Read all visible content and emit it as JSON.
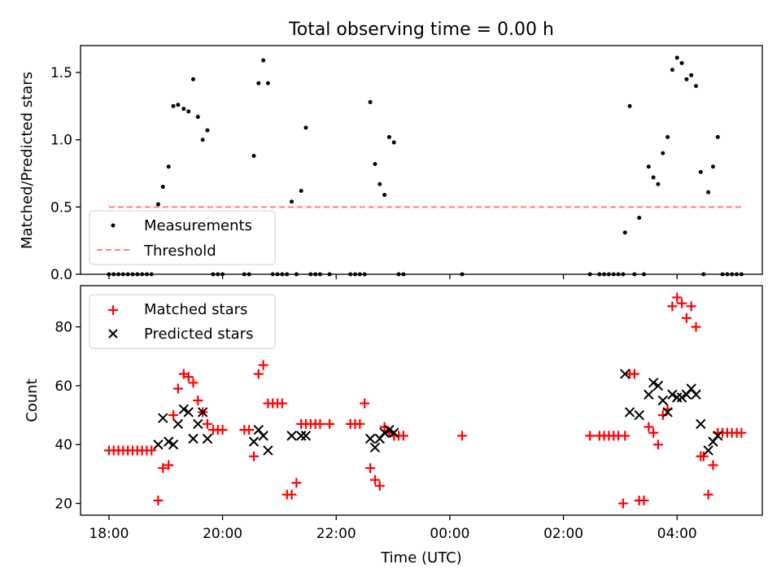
{
  "figure_title": "Total observing time = 0.00 h",
  "chart_data": [
    {
      "type": "scatter",
      "title": "Total observing time = 0.00 h",
      "xlabel": "",
      "ylabel": "Matched/Predicted stars",
      "xlim": [
        "17:30",
        "05:30"
      ],
      "ylim": [
        0,
        1.7
      ],
      "yticks": [
        0.0,
        0.5,
        1.0,
        1.5
      ],
      "ytick_labels": [
        "0.0",
        "0.5",
        "1.0",
        "1.5"
      ],
      "grid": false,
      "legend": "lower left",
      "legend_entries": [
        "Measurements",
        "Threshold"
      ],
      "series": [
        {
          "name": "Measurements",
          "marker": "dot",
          "color": "#000000",
          "points": [
            [
              "18:00",
              0
            ],
            [
              "18:05",
              0
            ],
            [
              "18:10",
              0
            ],
            [
              "18:15",
              0
            ],
            [
              "18:20",
              0
            ],
            [
              "18:25",
              0
            ],
            [
              "18:30",
              0
            ],
            [
              "18:35",
              0
            ],
            [
              "18:40",
              0
            ],
            [
              "18:45",
              0
            ],
            [
              "18:52",
              0.52
            ],
            [
              "18:57",
              0.65
            ],
            [
              "19:03",
              0.8
            ],
            [
              "19:08",
              1.25
            ],
            [
              "19:13",
              1.26
            ],
            [
              "19:19",
              1.23
            ],
            [
              "19:24",
              1.21
            ],
            [
              "19:29",
              1.45
            ],
            [
              "19:34",
              1.17
            ],
            [
              "19:39",
              1.0
            ],
            [
              "19:44",
              1.07
            ],
            [
              "19:50",
              0
            ],
            [
              "19:55",
              0
            ],
            [
              "20:00",
              0
            ],
            [
              "20:23",
              0
            ],
            [
              "20:28",
              0
            ],
            [
              "20:33",
              0.88
            ],
            [
              "20:38",
              1.42
            ],
            [
              "20:43",
              1.59
            ],
            [
              "20:48",
              1.42
            ],
            [
              "20:53",
              0
            ],
            [
              "20:58",
              0
            ],
            [
              "21:03",
              0
            ],
            [
              "21:08",
              0
            ],
            [
              "21:13",
              0.54
            ],
            [
              "21:18",
              0
            ],
            [
              "21:23",
              0.62
            ],
            [
              "21:28",
              1.09
            ],
            [
              "21:33",
              0
            ],
            [
              "21:38",
              0
            ],
            [
              "21:43",
              0
            ],
            [
              "21:53",
              0
            ],
            [
              "22:15",
              0
            ],
            [
              "22:20",
              0
            ],
            [
              "22:25",
              0
            ],
            [
              "22:30",
              0
            ],
            [
              "22:36",
              1.28
            ],
            [
              "22:41",
              0.82
            ],
            [
              "22:46",
              0.67
            ],
            [
              "22:51",
              0.59
            ],
            [
              "22:56",
              1.02
            ],
            [
              "23:01",
              0.98
            ],
            [
              "23:06",
              0
            ],
            [
              "23:11",
              0
            ],
            [
              "00:13",
              0
            ],
            [
              "02:28",
              0
            ],
            [
              "02:38",
              0
            ],
            [
              "02:43",
              0
            ],
            [
              "02:48",
              0
            ],
            [
              "02:53",
              0
            ],
            [
              "02:58",
              0
            ],
            [
              "03:03",
              0
            ],
            [
              "03:05",
              0.31
            ],
            [
              "03:10",
              1.25
            ],
            [
              "03:15",
              0
            ],
            [
              "03:20",
              0.42
            ],
            [
              "03:25",
              0
            ],
            [
              "03:30",
              0.8
            ],
            [
              "03:35",
              0.72
            ],
            [
              "03:40",
              0.67
            ],
            [
              "03:45",
              0.9
            ],
            [
              "03:50",
              1.02
            ],
            [
              "03:55",
              1.52
            ],
            [
              "04:00",
              1.61
            ],
            [
              "04:05",
              1.57
            ],
            [
              "04:10",
              1.45
            ],
            [
              "04:15",
              1.48
            ],
            [
              "04:20",
              1.4
            ],
            [
              "04:25",
              0.76
            ],
            [
              "04:28",
              0
            ],
            [
              "04:33",
              0.61
            ],
            [
              "04:38",
              0.8
            ],
            [
              "04:43",
              1.02
            ],
            [
              "04:48",
              0
            ],
            [
              "04:53",
              0
            ],
            [
              "04:58",
              0
            ],
            [
              "05:03",
              0
            ],
            [
              "05:08",
              0
            ]
          ]
        },
        {
          "name": "Threshold",
          "style": "dashed",
          "color": "#ff7f7f",
          "points": [
            [
              "18:00",
              0.5
            ],
            [
              "05:10",
              0.5
            ]
          ]
        }
      ]
    },
    {
      "type": "scatter",
      "title": "",
      "xlabel": "Time (UTC)",
      "ylabel": "Count",
      "xlim": [
        "17:30",
        "05:30"
      ],
      "ylim": [
        16,
        94
      ],
      "yticks": [
        20,
        40,
        60,
        80
      ],
      "ytick_labels": [
        "20",
        "40",
        "60",
        "80"
      ],
      "xticks": [
        "18:00",
        "20:00",
        "22:00",
        "00:00",
        "02:00",
        "04:00"
      ],
      "grid": false,
      "legend": "upper left",
      "legend_entries": [
        "Matched stars",
        "Predicted stars"
      ],
      "series": [
        {
          "name": "Matched stars",
          "marker": "plus",
          "color": "#ff0000",
          "points": [
            [
              "18:00",
              38
            ],
            [
              "18:05",
              38
            ],
            [
              "18:10",
              38
            ],
            [
              "18:15",
              38
            ],
            [
              "18:20",
              38
            ],
            [
              "18:25",
              38
            ],
            [
              "18:30",
              38
            ],
            [
              "18:35",
              38
            ],
            [
              "18:40",
              38
            ],
            [
              "18:45",
              38
            ],
            [
              "18:52",
              21
            ],
            [
              "18:57",
              32
            ],
            [
              "19:03",
              33
            ],
            [
              "19:08",
              50
            ],
            [
              "19:13",
              59
            ],
            [
              "19:19",
              64
            ],
            [
              "19:24",
              63
            ],
            [
              "19:29",
              61
            ],
            [
              "19:34",
              55
            ],
            [
              "19:39",
              51
            ],
            [
              "19:44",
              47
            ],
            [
              "19:50",
              45
            ],
            [
              "19:55",
              45
            ],
            [
              "20:00",
              45
            ],
            [
              "20:23",
              45
            ],
            [
              "20:28",
              45
            ],
            [
              "20:33",
              36
            ],
            [
              "20:38",
              64
            ],
            [
              "20:43",
              67
            ],
            [
              "20:48",
              54
            ],
            [
              "20:53",
              54
            ],
            [
              "20:58",
              54
            ],
            [
              "21:03",
              54
            ],
            [
              "21:08",
              23
            ],
            [
              "21:13",
              23
            ],
            [
              "21:18",
              27
            ],
            [
              "21:23",
              47
            ],
            [
              "21:28",
              47
            ],
            [
              "21:33",
              47
            ],
            [
              "21:38",
              47
            ],
            [
              "21:43",
              47
            ],
            [
              "21:53",
              47
            ],
            [
              "22:15",
              47
            ],
            [
              "22:20",
              47
            ],
            [
              "22:25",
              47
            ],
            [
              "22:30",
              54
            ],
            [
              "22:36",
              32
            ],
            [
              "22:41",
              28
            ],
            [
              "22:46",
              26
            ],
            [
              "22:51",
              46
            ],
            [
              "22:56",
              44
            ],
            [
              "23:01",
              43
            ],
            [
              "23:06",
              43
            ],
            [
              "23:11",
              43
            ],
            [
              "00:13",
              43
            ],
            [
              "02:28",
              43
            ],
            [
              "02:38",
              43
            ],
            [
              "02:43",
              43
            ],
            [
              "02:48",
              43
            ],
            [
              "02:53",
              43
            ],
            [
              "02:58",
              43
            ],
            [
              "03:03",
              20
            ],
            [
              "03:05",
              43
            ],
            [
              "03:10",
              64
            ],
            [
              "03:15",
              64
            ],
            [
              "03:20",
              21
            ],
            [
              "03:25",
              21
            ],
            [
              "03:30",
              46
            ],
            [
              "03:35",
              44
            ],
            [
              "03:40",
              40
            ],
            [
              "03:45",
              50
            ],
            [
              "03:50",
              52
            ],
            [
              "03:55",
              87
            ],
            [
              "04:00",
              90
            ],
            [
              "04:05",
              88
            ],
            [
              "04:10",
              83
            ],
            [
              "04:15",
              87
            ],
            [
              "04:20",
              80
            ],
            [
              "04:25",
              36
            ],
            [
              "04:28",
              36
            ],
            [
              "04:33",
              23
            ],
            [
              "04:38",
              33
            ],
            [
              "04:43",
              44
            ],
            [
              "04:48",
              44
            ],
            [
              "04:53",
              44
            ],
            [
              "04:58",
              44
            ],
            [
              "05:03",
              44
            ],
            [
              "05:08",
              44
            ]
          ]
        },
        {
          "name": "Predicted stars",
          "marker": "x",
          "color": "#000000",
          "points": [
            [
              "18:52",
              40
            ],
            [
              "18:57",
              49
            ],
            [
              "19:03",
              41
            ],
            [
              "19:08",
              40
            ],
            [
              "19:13",
              47
            ],
            [
              "19:19",
              52
            ],
            [
              "19:24",
              51
            ],
            [
              "19:29",
              42
            ],
            [
              "19:34",
              47
            ],
            [
              "19:39",
              51
            ],
            [
              "19:44",
              42
            ],
            [
              "20:33",
              41
            ],
            [
              "20:38",
              45
            ],
            [
              "20:43",
              43
            ],
            [
              "20:48",
              38
            ],
            [
              "21:13",
              43
            ],
            [
              "21:23",
              43
            ],
            [
              "21:28",
              43
            ],
            [
              "22:36",
              42
            ],
            [
              "22:41",
              39
            ],
            [
              "22:46",
              42
            ],
            [
              "22:51",
              44
            ],
            [
              "22:56",
              45
            ],
            [
              "23:01",
              44
            ],
            [
              "03:05",
              64
            ],
            [
              "03:10",
              51
            ],
            [
              "03:20",
              50
            ],
            [
              "03:30",
              57
            ],
            [
              "03:35",
              61
            ],
            [
              "03:40",
              60
            ],
            [
              "03:45",
              55
            ],
            [
              "03:50",
              51
            ],
            [
              "03:55",
              57
            ],
            [
              "04:00",
              56
            ],
            [
              "04:05",
              56
            ],
            [
              "04:10",
              57
            ],
            [
              "04:15",
              59
            ],
            [
              "04:20",
              57
            ],
            [
              "04:25",
              47
            ],
            [
              "04:33",
              38
            ],
            [
              "04:38",
              41
            ],
            [
              "04:43",
              43
            ]
          ]
        }
      ]
    }
  ]
}
